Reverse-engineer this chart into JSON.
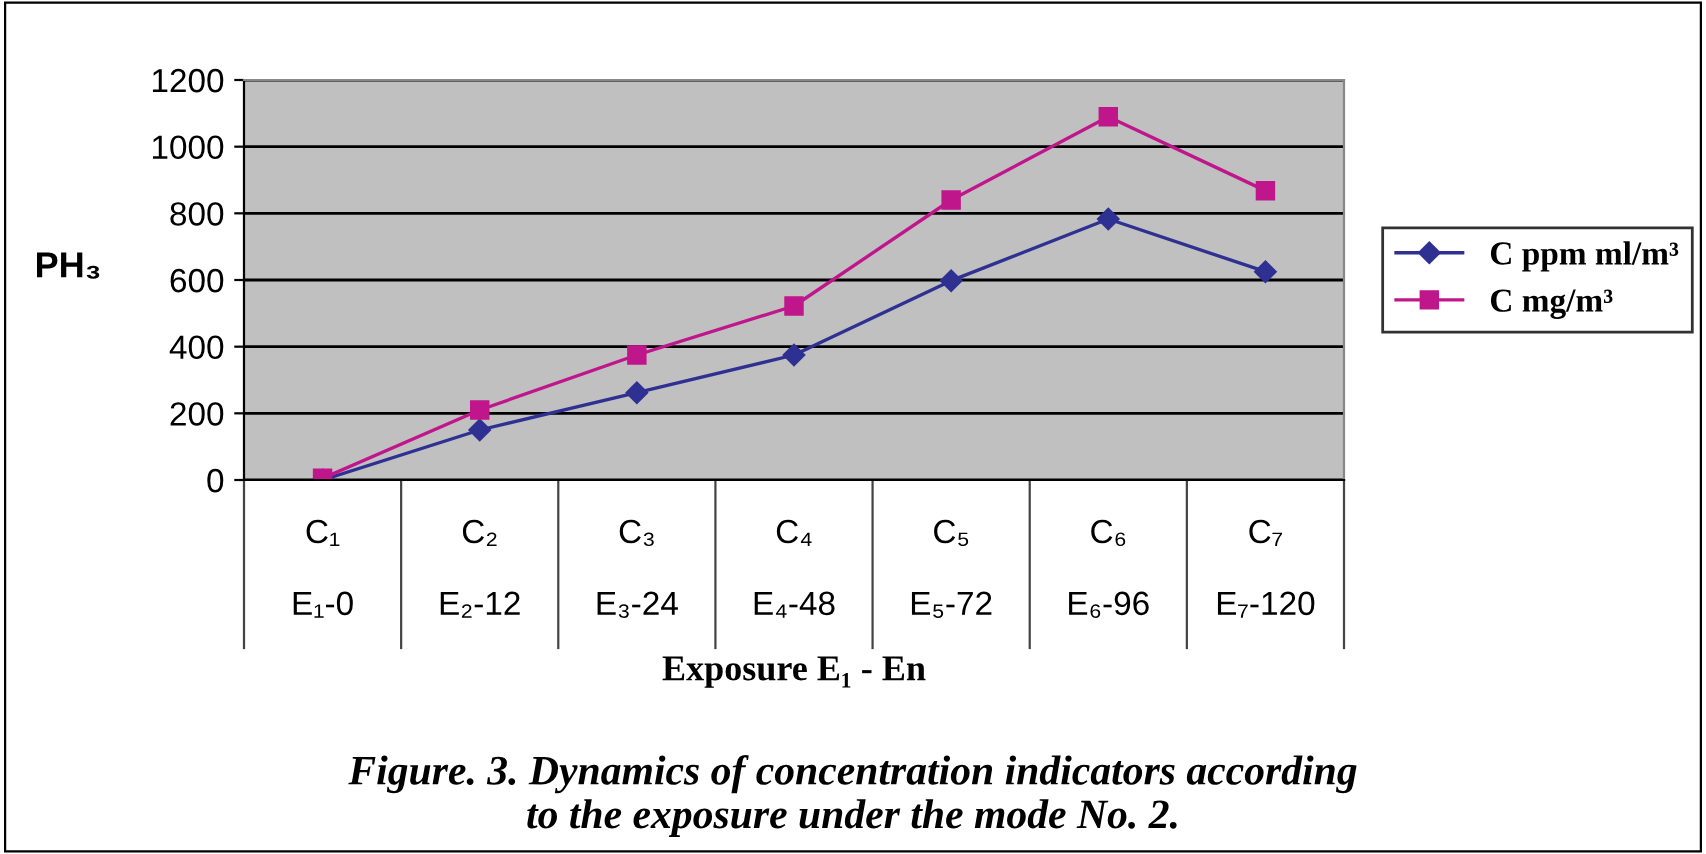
{
  "chart_data": {
    "type": "line",
    "title": "Figure. 3. Dynamics of concentration indicators according\nto the exposure under the mode No. 2.",
    "xlabel": "Exposure E₁ - En",
    "ylabel": "PH₃",
    "categories": [
      "C₁\n\nE₁-0",
      "C₂\n\nE₂-12",
      "C₃\n\nE₃-24",
      "C₄\n\nE₄-48",
      "C₅\n\nE₅-72",
      "C₆\n\nE₆-96",
      "C₇\n\nE₇-120"
    ],
    "series": [
      {
        "name": "C ppm ml/m³",
        "color": "#2e3192",
        "marker": "diamond",
        "values": [
          0,
          150,
          262,
          375,
          598,
          783,
          625
        ]
      },
      {
        "name": "C mg/m³",
        "color": "#c0168c",
        "marker": "square",
        "values": [
          5,
          210,
          375,
          522,
          840,
          1090,
          868
        ]
      }
    ],
    "ylim": [
      0,
      1200
    ],
    "yticks": [
      0,
      200,
      400,
      600,
      800,
      1000,
      1200
    ],
    "grid": "y",
    "legend": "right"
  }
}
